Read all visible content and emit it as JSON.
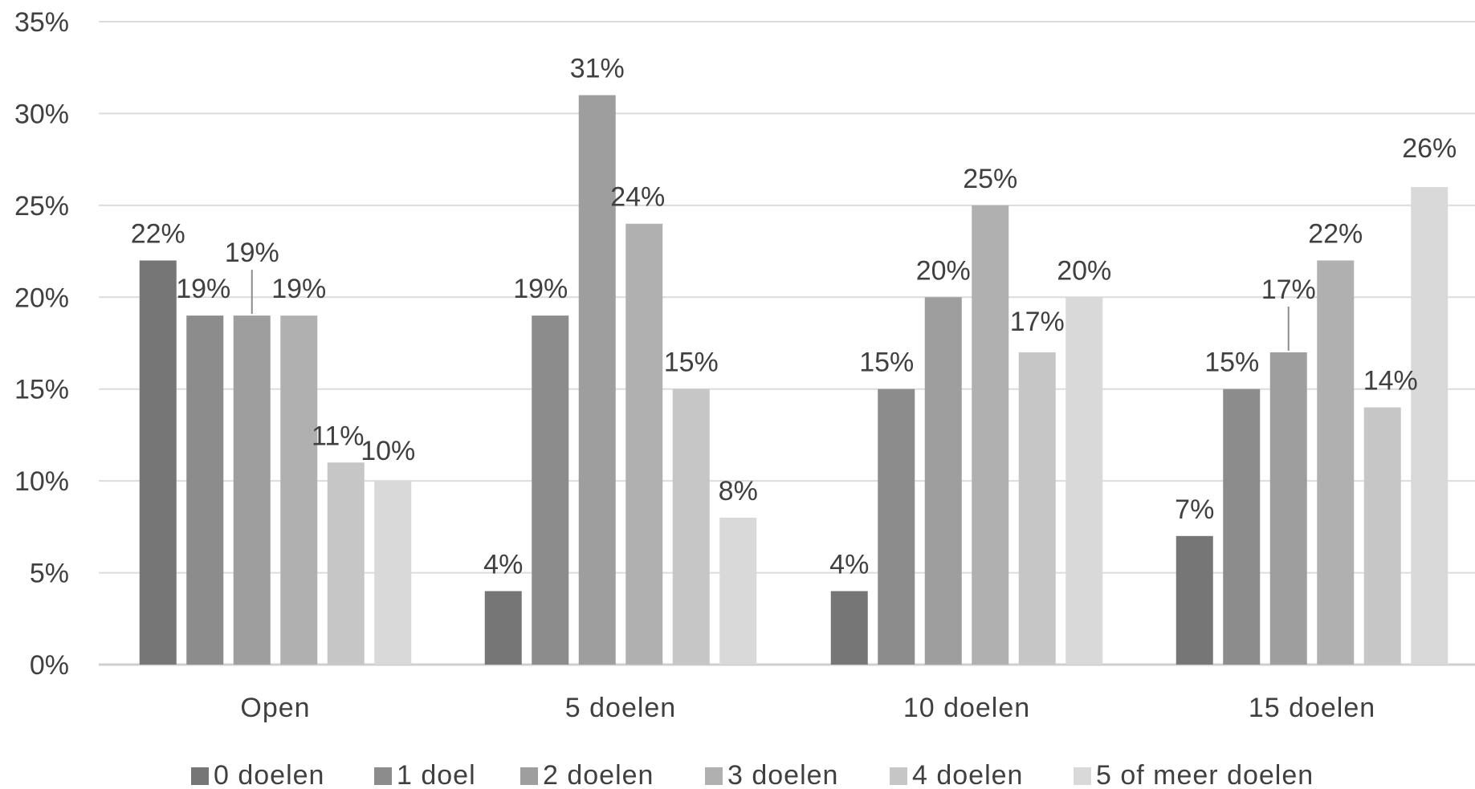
{
  "chart_data": {
    "type": "bar",
    "categories": [
      "Open",
      "5 doelen",
      "10 doelen",
      "15 doelen"
    ],
    "series": [
      {
        "name": "0 doelen",
        "color": "#767676",
        "values": [
          22,
          4,
          4,
          7
        ]
      },
      {
        "name": "1 doel",
        "color": "#8c8c8c",
        "values": [
          19,
          19,
          15,
          15
        ]
      },
      {
        "name": "2 doelen",
        "color": "#9e9e9e",
        "values": [
          19,
          31,
          20,
          17
        ]
      },
      {
        "name": "3 doelen",
        "color": "#b0b0b0",
        "values": [
          19,
          24,
          25,
          22
        ]
      },
      {
        "name": "4 doelen",
        "color": "#c6c6c6",
        "values": [
          11,
          15,
          17,
          14
        ]
      },
      {
        "name": "5 of meer doelen",
        "color": "#d9d9d9",
        "values": [
          10,
          8,
          20,
          26
        ]
      }
    ],
    "value_labels": [
      [
        "22%",
        "4%",
        "4%",
        "7%"
      ],
      [
        "19%",
        "19%",
        "15%",
        "15%"
      ],
      [
        "19%",
        "31%",
        "20%",
        "17%"
      ],
      [
        "19%",
        "24%",
        "25%",
        "22%"
      ],
      [
        "11%",
        "15%",
        "17%",
        "14%"
      ],
      [
        "10%",
        "8%",
        "20%",
        "26%"
      ]
    ],
    "yticks": [
      "0%",
      "5%",
      "10%",
      "15%",
      "20%",
      "25%",
      "30%",
      "35%"
    ],
    "ylim": [
      0,
      35
    ],
    "grid": true,
    "legend_position": "bottom"
  }
}
